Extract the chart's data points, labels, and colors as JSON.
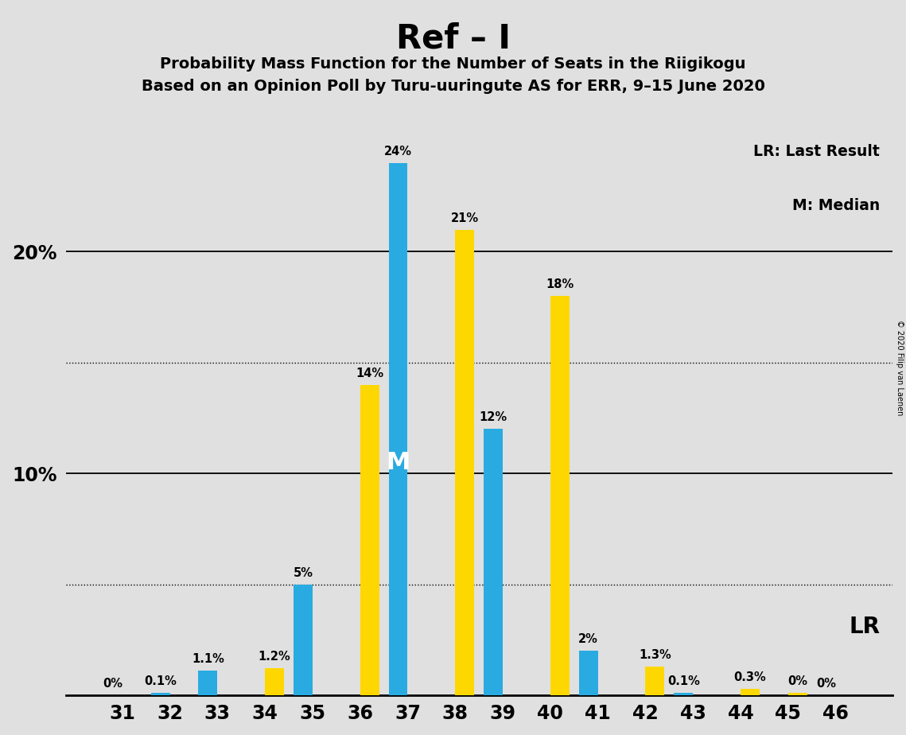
{
  "title": "Ref – I",
  "subtitle1": "Probability Mass Function for the Number of Seats in the Riigikogu",
  "subtitle2": "Based on an Opinion Poll by Turu-uuringute AS for ERR, 9–15 June 2020",
  "copyright": "© 2020 Filip van Laenen",
  "seats": [
    31,
    32,
    33,
    34,
    35,
    36,
    37,
    38,
    39,
    40,
    41,
    42,
    43,
    44,
    45,
    46
  ],
  "blue_values": [
    0.0,
    0.1,
    1.1,
    0.0,
    5.0,
    0.0,
    24.0,
    0.0,
    12.0,
    0.0,
    2.0,
    0.0,
    0.1,
    0.0,
    0.0,
    0.0
  ],
  "yellow_values": [
    0.0,
    0.0,
    0.0,
    1.2,
    0.0,
    14.0,
    0.0,
    21.0,
    0.0,
    18.0,
    0.0,
    1.3,
    0.0,
    0.3,
    0.1,
    0.0
  ],
  "blue_labels": [
    "0%",
    "0.1%",
    "1.1%",
    "",
    "5%",
    "",
    "24%",
    "",
    "12%",
    "",
    "2%",
    "",
    "0.1%",
    "",
    "",
    "0%"
  ],
  "yellow_labels": [
    "",
    "",
    "",
    "1.2%",
    "",
    "14%",
    "",
    "21%",
    "",
    "18%",
    "",
    "1.3%",
    "",
    "0.3%",
    "0%",
    ""
  ],
  "blue_color": "#29ABE2",
  "yellow_color": "#FFD700",
  "background_color": "#E0E0E0",
  "ylim": [
    0,
    27
  ],
  "dotted_lines": [
    5.0,
    15.0
  ],
  "solid_lines": [
    10.0,
    20.0
  ],
  "lr_label": "LR: Last Result",
  "median_label": "M: Median",
  "lr_bar_label": "LR",
  "median_bar_text": "M",
  "median_seat": 37,
  "bar_width": 0.4,
  "label_fontsize": 10.5,
  "tick_fontsize": 17,
  "title_fontsize": 30,
  "subtitle_fontsize": 14
}
